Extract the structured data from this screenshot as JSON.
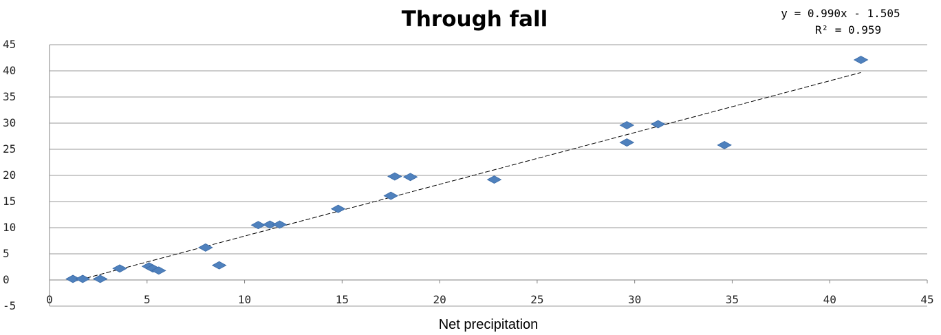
{
  "chart_data": {
    "type": "scatter",
    "title": "Through fall",
    "xlabel": "Net precipitation",
    "ylabel": "",
    "xlim": [
      0,
      45
    ],
    "ylim": [
      -5,
      45
    ],
    "xticks": [
      "0",
      "5",
      "10",
      "15",
      "20",
      "25",
      "30",
      "35",
      "40",
      "45"
    ],
    "yticks": [
      "-5",
      "0",
      "5",
      "10",
      "15",
      "20",
      "25",
      "30",
      "35",
      "40",
      "45"
    ],
    "grid": "horizontal",
    "trendline": {
      "type": "linear",
      "slope": 0.99,
      "intercept": -1.505,
      "x_range": [
        1.2,
        41.6
      ],
      "equation_label": "y = 0.990x - 1.505",
      "r2_label": "R² = 0.959"
    },
    "points": [
      {
        "x": 1.2,
        "y": 0.2
      },
      {
        "x": 1.7,
        "y": 0.2
      },
      {
        "x": 2.6,
        "y": 0.2
      },
      {
        "x": 3.6,
        "y": 2.2
      },
      {
        "x": 5.1,
        "y": 2.6
      },
      {
        "x": 5.3,
        "y": 2.2
      },
      {
        "x": 5.6,
        "y": 1.8
      },
      {
        "x": 8.0,
        "y": 6.2
      },
      {
        "x": 8.7,
        "y": 2.8
      },
      {
        "x": 10.7,
        "y": 10.5
      },
      {
        "x": 11.3,
        "y": 10.6
      },
      {
        "x": 11.8,
        "y": 10.6
      },
      {
        "x": 14.8,
        "y": 13.6
      },
      {
        "x": 17.5,
        "y": 16.1
      },
      {
        "x": 17.7,
        "y": 19.8
      },
      {
        "x": 18.5,
        "y": 19.7
      },
      {
        "x": 22.8,
        "y": 19.2
      },
      {
        "x": 29.6,
        "y": 29.6
      },
      {
        "x": 29.6,
        "y": 26.3
      },
      {
        "x": 31.2,
        "y": 29.8
      },
      {
        "x": 34.6,
        "y": 25.8
      },
      {
        "x": 41.6,
        "y": 42.1
      }
    ]
  }
}
